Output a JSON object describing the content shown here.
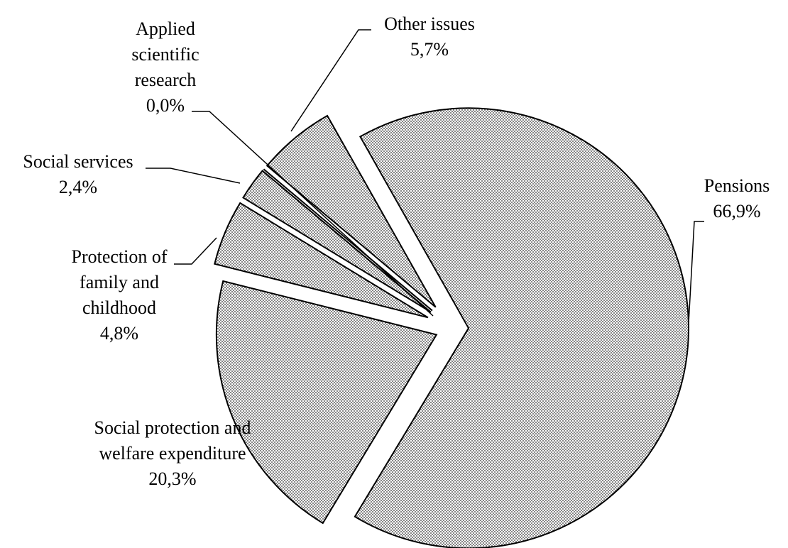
{
  "chart_data": {
    "type": "pie",
    "categories": [
      "Pensions",
      "Social protection and welfare expenditure",
      "Protection of family and childhood",
      "Social services",
      "Applied scientific research",
      "Other issues"
    ],
    "values": [
      66.9,
      20.3,
      4.8,
      2.4,
      0.0,
      5.7
    ],
    "value_labels": [
      "66,9%",
      "20,3%",
      "4,8%",
      "2,4%",
      "0,0%",
      "5,7%"
    ],
    "color": "#000000"
  }
}
